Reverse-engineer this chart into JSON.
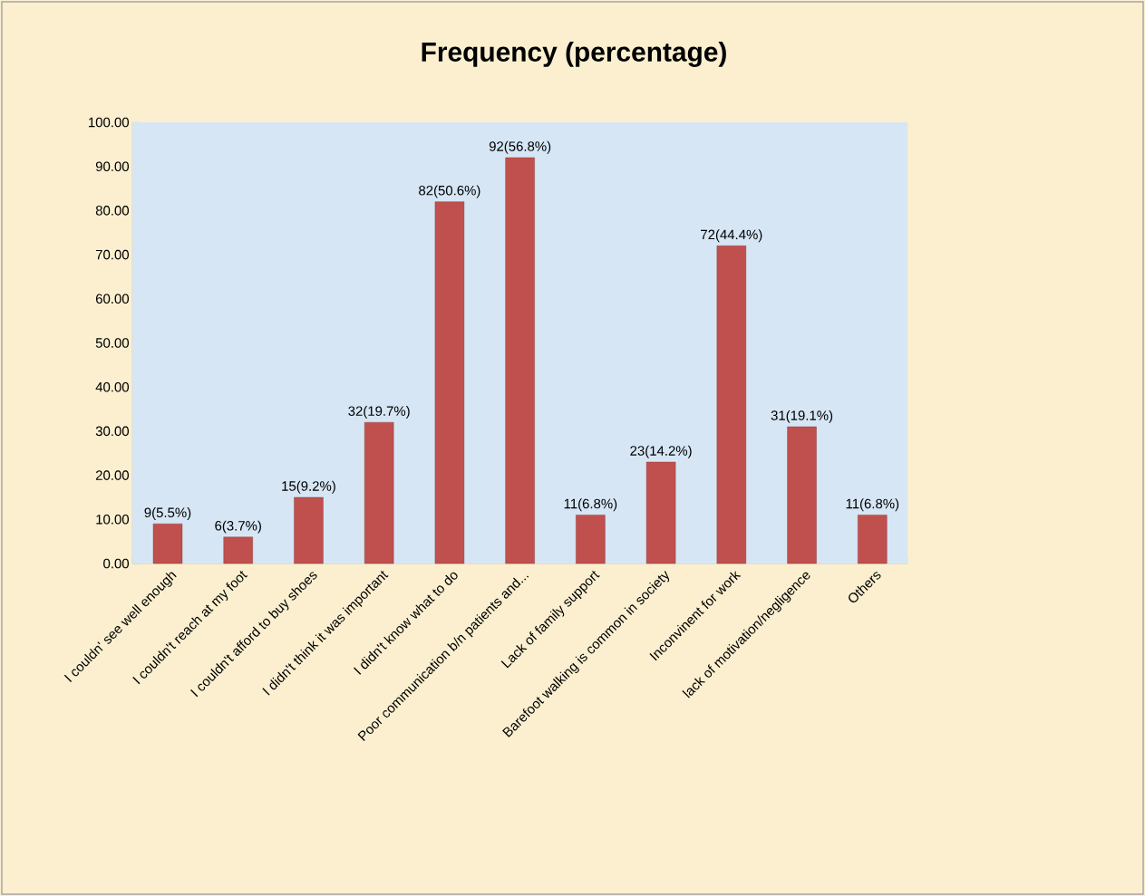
{
  "chart_data": {
    "type": "bar",
    "title": "Frequency (percentage)",
    "categories": [
      "I couldn' see well enough",
      "I couldn't reach at my foot",
      "I couldn't afford to buy shoes",
      "I didn't think it was important",
      "I didn't know what to do",
      "Poor communication b/n patients and...",
      "Lack of family support",
      "Barefoot walking is common in society",
      "Inconvinent for work",
      "lack of motivation/negligence",
      "Others"
    ],
    "values": [
      9,
      6,
      15,
      32,
      82,
      92,
      11,
      23,
      72,
      31,
      11
    ],
    "value_labels": [
      "9(5.5%)",
      "6(3.7%)",
      "15(9.2%)",
      "32(19.7%)",
      "82(50.6%)",
      "92(56.8%)",
      "11(6.8%)",
      "23(14.2%)",
      "72(44.4%)",
      "31(19.1%)",
      "11(6.8%)"
    ],
    "color": "#c0504d",
    "ylim": [
      0,
      100
    ],
    "yticks": [
      {
        "value": 0,
        "label": "0.00"
      },
      {
        "value": 10,
        "label": "10.00"
      },
      {
        "value": 20,
        "label": "20.00"
      },
      {
        "value": 30,
        "label": "30.00"
      },
      {
        "value": 40,
        "label": "40.00"
      },
      {
        "value": 50,
        "label": "50.00"
      },
      {
        "value": 60,
        "label": "60.00"
      },
      {
        "value": 70,
        "label": "70.00"
      },
      {
        "value": 80,
        "label": "80.00"
      },
      {
        "value": 90,
        "label": "90.00"
      },
      {
        "value": 100,
        "label": "100.00"
      }
    ]
  }
}
